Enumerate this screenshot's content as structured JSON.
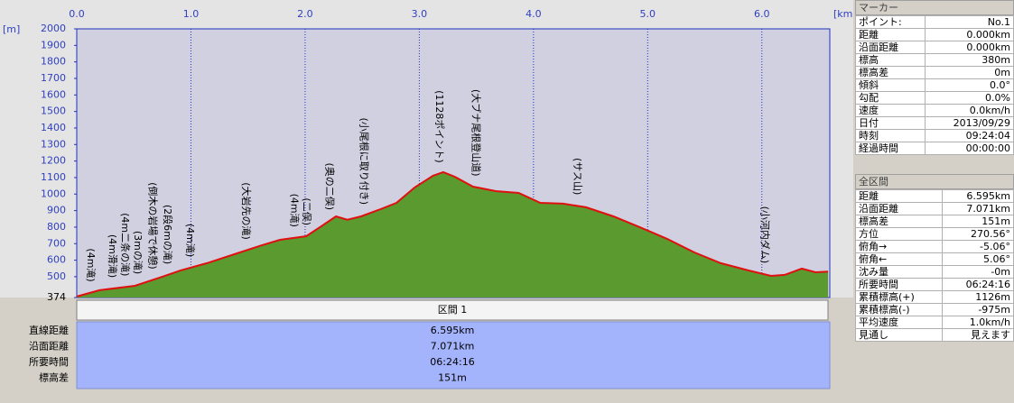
{
  "chart_data": {
    "type": "area",
    "x_unit": "[km]",
    "y_unit": "[m]",
    "xlim": [
      0,
      6.595
    ],
    "ylim": [
      374,
      2000
    ],
    "xticks": [
      {
        "value": 0,
        "label": "0.0"
      },
      {
        "value": 1,
        "label": "1.0"
      },
      {
        "value": 2,
        "label": "2.0"
      },
      {
        "value": 3,
        "label": "3.0"
      },
      {
        "value": 4,
        "label": "4.0"
      },
      {
        "value": 5,
        "label": "5.0"
      },
      {
        "value": 6,
        "label": "6.0"
      }
    ],
    "yticks": [
      374,
      500,
      600,
      700,
      800,
      900,
      1000,
      1100,
      1200,
      1300,
      1400,
      1500,
      1600,
      1700,
      1800,
      1900,
      2000
    ],
    "x": [
      0,
      0.2,
      0.51,
      0.75,
      0.91,
      1.14,
      1.38,
      1.62,
      1.78,
      2.01,
      2.13,
      2.27,
      2.37,
      2.49,
      2.64,
      2.8,
      2.96,
      3.12,
      3.21,
      3.31,
      3.47,
      3.67,
      3.87,
      4.06,
      4.26,
      4.46,
      4.7,
      4.93,
      5.17,
      5.41,
      5.64,
      5.88,
      6.08,
      6.2,
      6.35,
      6.47,
      6.58
    ],
    "values": [
      380,
      418,
      445,
      500,
      538,
      582,
      636,
      690,
      723,
      745,
      800,
      865,
      845,
      865,
      903,
      947,
      1040,
      1111,
      1133,
      1105,
      1045,
      1018,
      1007,
      947,
      942,
      920,
      865,
      800,
      729,
      647,
      582,
      538,
      505,
      511,
      549,
      527,
      531
    ],
    "color": "#5a9a2e",
    "line_color": "#e01010",
    "annotations": [
      {
        "text": "(4m滝)",
        "x": 0.12
      },
      {
        "text": "(4m滑滝)",
        "x": 0.31
      },
      {
        "text": "(4m二条の滝)",
        "x": 0.42
      },
      {
        "text": "(3mの滝)",
        "x": 0.53
      },
      {
        "text": "(倒木の岩場で休憩)",
        "x": 0.66
      },
      {
        "text": "(2段6mの滝)",
        "x": 0.79
      },
      {
        "text": "(4m滝)",
        "x": 0.99
      },
      {
        "text": "(大岩先の滝)",
        "x": 1.48
      },
      {
        "text": "(4m滝)",
        "x": 1.9
      },
      {
        "text": "(二俣)",
        "x": 2.01
      },
      {
        "text": "(奥の二俣)",
        "x": 2.21
      },
      {
        "text": "(小尾根に取り付き)",
        "x": 2.51
      },
      {
        "text": "(1128ポイント)",
        "x": 3.17
      },
      {
        "text": "(大ブナ尾根登山道)",
        "x": 3.49
      },
      {
        "text": "(サス山)",
        "x": 4.38
      },
      {
        "text": "(小河内ダム)",
        "x": 6.02
      }
    ]
  },
  "section": {
    "title": "区間 1",
    "rows": [
      [
        "直線距離",
        "6.595km"
      ],
      [
        "沿面距離",
        "7.071km"
      ],
      [
        "所要時間",
        "06:24:16"
      ],
      [
        "標高差",
        "151m"
      ]
    ]
  },
  "marker_panel": {
    "title": "マーカー",
    "rows": [
      [
        "ポイント:",
        "No.1"
      ],
      [
        "距離",
        "0.000km"
      ],
      [
        "沿面距離",
        "0.000km"
      ],
      [
        "標高",
        "380m"
      ],
      [
        "標高差",
        "0m"
      ],
      [
        "傾斜",
        "0.0°"
      ],
      [
        "勾配",
        "0.0%"
      ],
      [
        "速度",
        "0.0km/h"
      ],
      [
        "日付",
        "2013/09/29"
      ],
      [
        "時刻",
        "09:24:04"
      ],
      [
        "経過時間",
        "00:00:00"
      ]
    ]
  },
  "total_panel": {
    "title": "全区間",
    "rows": [
      [
        "距離",
        "6.595km"
      ],
      [
        "沿面距離",
        "7.071km"
      ],
      [
        "標高差",
        "151m"
      ],
      [
        "方位",
        "270.56°"
      ],
      [
        "俯角→",
        "-5.06°"
      ],
      [
        "俯角←",
        "5.06°"
      ],
      [
        "沈み量",
        "-0m"
      ],
      [
        "所要時間",
        "06:24:16"
      ],
      [
        "累積標高(+)",
        "1126m"
      ],
      [
        "累積標高(-)",
        "-975m"
      ],
      [
        "平均速度",
        "1.0km/h"
      ],
      [
        "見通し",
        "見えます"
      ]
    ]
  }
}
